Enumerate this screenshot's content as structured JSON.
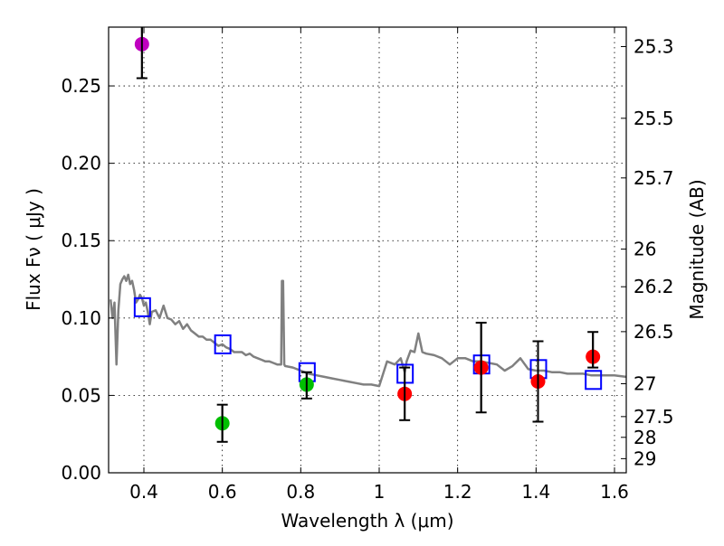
{
  "chart_data": {
    "type": "scatter",
    "title": "",
    "xlabel": "Wavelength  λ (μm)",
    "ylabel": "Flux  Fν  ( μJy )",
    "ylabel_right": "Magnitude (AB)",
    "xlim": [
      0.31,
      1.63
    ],
    "ylim": [
      0.0,
      0.288
    ],
    "grid": true,
    "legend": "none",
    "x_ticks": [
      {
        "value": 0.4,
        "label": "0.4"
      },
      {
        "value": 0.6,
        "label": "0.6"
      },
      {
        "value": 0.8,
        "label": "0.8"
      },
      {
        "value": 1.0,
        "label": "1"
      },
      {
        "value": 1.2,
        "label": "1.2"
      },
      {
        "value": 1.4,
        "label": "1.4"
      },
      {
        "value": 1.6,
        "label": "1.6"
      }
    ],
    "y_ticks": [
      {
        "value": 0.0,
        "label": "0.00"
      },
      {
        "value": 0.05,
        "label": "0.05"
      },
      {
        "value": 0.1,
        "label": "0.10"
      },
      {
        "value": 0.15,
        "label": "0.15"
      },
      {
        "value": 0.2,
        "label": "0.20"
      },
      {
        "value": 0.25,
        "label": "0.25"
      }
    ],
    "right_ticks": [
      {
        "mag": 25.3,
        "label": "25.3"
      },
      {
        "mag": 25.5,
        "label": "25.5"
      },
      {
        "mag": 25.7,
        "label": "25.7"
      },
      {
        "mag": 26.0,
        "label": "26"
      },
      {
        "mag": 26.2,
        "label": "26.2"
      },
      {
        "mag": 26.5,
        "label": "26.5"
      },
      {
        "mag": 27.0,
        "label": "27"
      },
      {
        "mag": 27.5,
        "label": "27.5"
      },
      {
        "mag": 28.0,
        "label": "28"
      },
      {
        "mag": 29.0,
        "label": "29"
      }
    ],
    "series": [
      {
        "name": "model-spectrum",
        "kind": "line",
        "color": "#808080",
        "x": [
          0.315,
          0.32,
          0.325,
          0.33,
          0.335,
          0.34,
          0.345,
          0.35,
          0.355,
          0.36,
          0.365,
          0.37,
          0.375,
          0.38,
          0.385,
          0.39,
          0.395,
          0.4,
          0.405,
          0.41,
          0.415,
          0.42,
          0.43,
          0.44,
          0.45,
          0.46,
          0.47,
          0.48,
          0.49,
          0.5,
          0.51,
          0.52,
          0.53,
          0.54,
          0.55,
          0.56,
          0.57,
          0.58,
          0.59,
          0.6,
          0.61,
          0.62,
          0.63,
          0.64,
          0.65,
          0.66,
          0.67,
          0.68,
          0.69,
          0.7,
          0.71,
          0.72,
          0.73,
          0.74,
          0.75,
          0.752,
          0.755,
          0.758,
          0.76,
          0.78,
          0.8,
          0.82,
          0.84,
          0.86,
          0.88,
          0.9,
          0.92,
          0.94,
          0.96,
          0.98,
          1.0,
          1.02,
          1.04,
          1.055,
          1.065,
          1.07,
          1.08,
          1.09,
          1.1,
          1.11,
          1.12,
          1.14,
          1.16,
          1.18,
          1.2,
          1.22,
          1.24,
          1.26,
          1.28,
          1.3,
          1.32,
          1.34,
          1.36,
          1.38,
          1.4,
          1.42,
          1.44,
          1.46,
          1.48,
          1.5,
          1.52,
          1.54,
          1.56,
          1.58,
          1.6,
          1.63
        ],
        "y": [
          0.112,
          0.1,
          0.11,
          0.07,
          0.105,
          0.122,
          0.125,
          0.127,
          0.124,
          0.128,
          0.122,
          0.124,
          0.118,
          0.11,
          0.112,
          0.115,
          0.113,
          0.108,
          0.11,
          0.104,
          0.096,
          0.104,
          0.105,
          0.1,
          0.108,
          0.1,
          0.099,
          0.096,
          0.098,
          0.093,
          0.096,
          0.092,
          0.09,
          0.088,
          0.088,
          0.086,
          0.086,
          0.084,
          0.082,
          0.083,
          0.081,
          0.08,
          0.078,
          0.078,
          0.078,
          0.076,
          0.077,
          0.075,
          0.074,
          0.073,
          0.072,
          0.072,
          0.071,
          0.07,
          0.07,
          0.124,
          0.124,
          0.07,
          0.069,
          0.068,
          0.066,
          0.064,
          0.063,
          0.062,
          0.061,
          0.06,
          0.059,
          0.058,
          0.057,
          0.057,
          0.056,
          0.072,
          0.07,
          0.074,
          0.065,
          0.072,
          0.079,
          0.078,
          0.09,
          0.078,
          0.077,
          0.076,
          0.074,
          0.07,
          0.074,
          0.074,
          0.072,
          0.072,
          0.071,
          0.07,
          0.066,
          0.069,
          0.074,
          0.067,
          0.066,
          0.066,
          0.065,
          0.065,
          0.064,
          0.064,
          0.064,
          0.063,
          0.063,
          0.063,
          0.063,
          0.062
        ]
      },
      {
        "name": "model-bandpass-fluxes",
        "kind": "open-square",
        "color": "#0000ff",
        "x": [
          0.395,
          0.6,
          0.815,
          1.065,
          1.26,
          1.405,
          1.545
        ],
        "y": [
          0.107,
          0.083,
          0.065,
          0.064,
          0.07,
          0.067,
          0.06
        ]
      },
      {
        "name": "observed-u",
        "kind": "point",
        "color": "#bf00bf",
        "x": [
          0.395
        ],
        "y": [
          0.277
        ],
        "yerr_low": [
          0.255
        ],
        "yerr_high": [
          0.3
        ]
      },
      {
        "name": "observed-optical",
        "kind": "point",
        "color": "#00bf00",
        "x": [
          0.6,
          0.815
        ],
        "y": [
          0.032,
          0.057
        ],
        "yerr_low": [
          0.02,
          0.048
        ],
        "yerr_high": [
          0.044,
          0.065
        ]
      },
      {
        "name": "observed-nir",
        "kind": "point",
        "color": "#ff0000",
        "x": [
          1.065,
          1.26,
          1.405,
          1.545
        ],
        "y": [
          0.051,
          0.068,
          0.059,
          0.075
        ],
        "yerr_low": [
          0.034,
          0.039,
          0.033,
          0.068
        ],
        "yerr_high": [
          0.068,
          0.097,
          0.085,
          0.091
        ]
      }
    ]
  }
}
